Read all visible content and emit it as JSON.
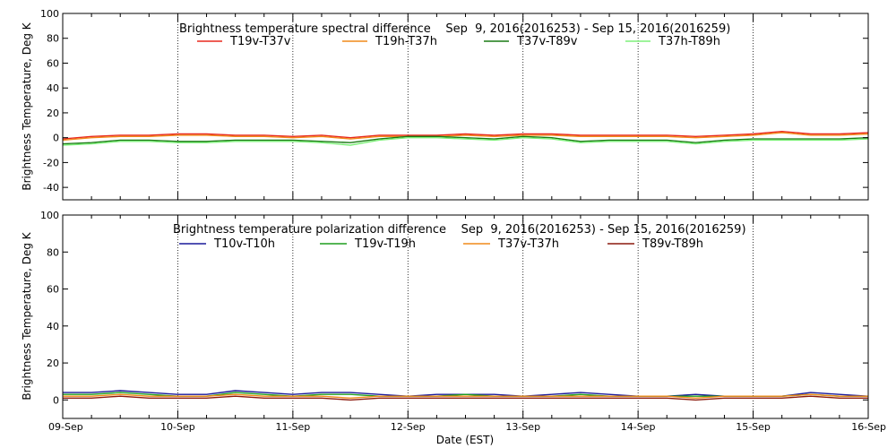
{
  "x_axis": {
    "label": "Date (EST)",
    "ticks": [
      "09-Sep",
      "10-Sep",
      "11-Sep",
      "12-Sep",
      "13-Sep",
      "14-Sep",
      "15-Sep",
      "16-Sep"
    ]
  },
  "chart_data": [
    {
      "type": "line",
      "title": "Brightness temperature spectral difference    Sep  9, 2016(2016253) - Sep 15, 2016(2016259)",
      "ylabel": "Brightness Temperature, Deg K",
      "xlabel": "",
      "xlim": [
        0,
        7
      ],
      "ylim": [
        -50,
        100
      ],
      "yticks": [
        "-40",
        "-20",
        "0",
        "20",
        "40",
        "60",
        "80",
        "100"
      ],
      "grid": "vertical dotted lines at each day",
      "legend_position": "top",
      "x": [
        0,
        0.25,
        0.5,
        0.75,
        1.0,
        1.25,
        1.5,
        1.75,
        2.0,
        2.25,
        2.5,
        2.75,
        3.0,
        3.25,
        3.5,
        3.75,
        4.0,
        4.25,
        4.5,
        4.75,
        5.0,
        5.25,
        5.5,
        5.75,
        6.0,
        6.25,
        6.5,
        6.75,
        7.0
      ],
      "series": [
        {
          "name": "T19v-T37v",
          "color": "#e8281e",
          "values": [
            -1,
            1,
            2,
            2,
            3,
            3,
            2,
            2,
            1,
            2,
            0,
            2,
            2,
            2,
            3,
            2,
            3,
            3,
            2,
            2,
            2,
            2,
            1,
            2,
            3,
            5,
            3,
            3,
            4
          ]
        },
        {
          "name": "T19h-T37h",
          "color": "#f08a1a",
          "values": [
            -2,
            0,
            1,
            1,
            2,
            2,
            1,
            1,
            0,
            1,
            -1,
            1,
            1,
            1,
            2,
            1,
            2,
            2,
            1,
            1,
            1,
            1,
            0,
            1,
            2,
            4,
            2,
            2,
            3
          ]
        },
        {
          "name": "T37v-T89v",
          "color": "#1a7a14",
          "values": [
            -5,
            -4,
            -2,
            -2,
            -3,
            -3,
            -2,
            -2,
            -2,
            -3,
            -4,
            -1,
            1,
            1,
            0,
            -1,
            1,
            0,
            -3,
            -2,
            -2,
            -2,
            -4,
            -2,
            -1,
            -1,
            -1,
            -1,
            0
          ]
        },
        {
          "name": "T37h-T89h",
          "color": "#7ef07a",
          "values": [
            -6,
            -5,
            -3,
            -3,
            -4,
            -4,
            -3,
            -3,
            -3,
            -4,
            -6,
            -2,
            0,
            0,
            -1,
            -2,
            0,
            -1,
            -4,
            -3,
            -3,
            -3,
            -5,
            -3,
            -2,
            -2,
            -2,
            -2,
            -1
          ]
        }
      ]
    },
    {
      "type": "line",
      "title": "Brightness temperature polarization difference    Sep  9, 2016(2016253) - Sep 15, 2016(2016259)",
      "ylabel": "Brightness Temperature, Deg K",
      "xlabel": "Date (EST)",
      "xlim": [
        0,
        7
      ],
      "ylim": [
        -10,
        100
      ],
      "yticks": [
        "0",
        "20",
        "40",
        "60",
        "80",
        "100"
      ],
      "grid": "vertical dotted lines at each day",
      "legend_position": "top",
      "x": [
        0,
        0.25,
        0.5,
        0.75,
        1.0,
        1.25,
        1.5,
        1.75,
        2.0,
        2.25,
        2.5,
        2.75,
        3.0,
        3.25,
        3.5,
        3.75,
        4.0,
        4.25,
        4.5,
        4.75,
        5.0,
        5.25,
        5.5,
        5.75,
        6.0,
        6.25,
        6.5,
        6.75,
        7.0
      ],
      "series": [
        {
          "name": "T10v-T10h",
          "color": "#1a1a9a",
          "values": [
            4,
            4,
            5,
            4,
            3,
            3,
            5,
            4,
            3,
            4,
            4,
            3,
            2,
            3,
            3,
            3,
            2,
            3,
            4,
            3,
            2,
            2,
            3,
            2,
            2,
            2,
            4,
            3,
            2
          ]
        },
        {
          "name": "T19v-T19h",
          "color": "#1e9e1e",
          "values": [
            3,
            3,
            4,
            3,
            2,
            2,
            4,
            3,
            2,
            3,
            3,
            2,
            2,
            2,
            3,
            2,
            2,
            2,
            3,
            2,
            2,
            2,
            2,
            2,
            2,
            2,
            3,
            2,
            2
          ]
        },
        {
          "name": "T37v-T37h",
          "color": "#f08a1a",
          "values": [
            2,
            2,
            3,
            2,
            2,
            2,
            3,
            2,
            2,
            2,
            1,
            2,
            2,
            2,
            2,
            2,
            2,
            2,
            2,
            2,
            2,
            2,
            1,
            2,
            2,
            2,
            3,
            2,
            2
          ]
        },
        {
          "name": "T89v-T89h",
          "color": "#8b1a0e",
          "values": [
            1,
            1,
            2,
            1,
            1,
            1,
            2,
            1,
            1,
            1,
            0,
            1,
            1,
            1,
            1,
            1,
            1,
            1,
            1,
            1,
            1,
            1,
            0,
            1,
            1,
            1,
            2,
            1,
            1
          ]
        }
      ]
    }
  ]
}
